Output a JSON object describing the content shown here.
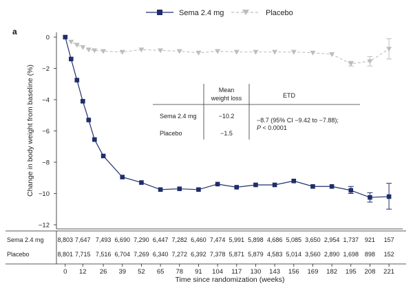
{
  "chart_data": {
    "type": "line",
    "panel_label": "a",
    "ylabel": "Change in body weight from baseline (%)",
    "xlabel": "Time since randomization (weeks)",
    "ylim": [
      -12,
      0
    ],
    "yticks": [
      0,
      -2,
      -4,
      -6,
      -8,
      -10,
      -12
    ],
    "xticks": [
      0,
      12,
      26,
      39,
      52,
      65,
      78,
      91,
      104,
      117,
      130,
      143,
      156,
      169,
      182,
      195,
      208,
      221
    ],
    "xlim": [
      -6,
      228
    ],
    "grid": false,
    "legend_position": "top-center",
    "series": [
      {
        "name": "Sema 2.4 mg",
        "color": "#1f2d6b",
        "line_style": "solid",
        "marker": "square",
        "x": [
          0,
          4,
          8,
          12,
          16,
          20,
          26,
          39,
          52,
          65,
          78,
          91,
          104,
          117,
          130,
          143,
          156,
          169,
          182,
          195,
          208,
          221
        ],
        "y": [
          0,
          -1.4,
          -2.75,
          -4.1,
          -5.3,
          -6.55,
          -7.6,
          -8.95,
          -9.3,
          -9.75,
          -9.7,
          -9.75,
          -9.4,
          -9.6,
          -9.45,
          -9.45,
          -9.2,
          -9.55,
          -9.55,
          -9.8,
          -10.25,
          -10.2
        ],
        "error_bars": [
          {
            "x": 195,
            "low": -10.0,
            "high": -9.55
          },
          {
            "x": 208,
            "low": -10.55,
            "high": -9.95
          },
          {
            "x": 221,
            "low": -11.0,
            "high": -9.35
          }
        ]
      },
      {
        "name": "Placebo",
        "color": "#bdbdbd",
        "line_style": "dashed",
        "marker": "triangle-down",
        "x": [
          0,
          4,
          8,
          12,
          16,
          20,
          26,
          39,
          52,
          65,
          78,
          91,
          104,
          117,
          130,
          143,
          156,
          169,
          182,
          195,
          208,
          221
        ],
        "y": [
          0,
          -0.3,
          -0.5,
          -0.65,
          -0.8,
          -0.85,
          -0.9,
          -0.95,
          -0.8,
          -0.85,
          -0.9,
          -1.0,
          -0.9,
          -0.95,
          -0.95,
          -0.95,
          -0.95,
          -1.0,
          -1.1,
          -1.7,
          -1.55,
          -0.75
        ],
        "error_bars": [
          {
            "x": 195,
            "low": -1.85,
            "high": -1.55
          },
          {
            "x": 208,
            "low": -1.85,
            "high": -1.25
          },
          {
            "x": 221,
            "low": -1.4,
            "high": -0.1
          }
        ]
      }
    ],
    "inset_table": {
      "header_col2_line1": "Mean",
      "header_col2_line2": "weight loss",
      "header_col3": "ETD",
      "row1_label": "Sema 2.4 mg",
      "row1_value": "−10.2",
      "row2_label": "Placebo",
      "row2_value": "−1.5",
      "etd_line1": "−8.7 (95% CI −9.42 to −7.88);",
      "etd_line2_p": "P",
      "etd_line2_rest": " < 0.0001"
    },
    "at_risk": {
      "rows": [
        {
          "label": "Sema 2.4 mg",
          "values": [
            "8,803",
            "7,647",
            "7,493",
            "6,690",
            "7,290",
            "6,447",
            "7,282",
            "6,460",
            "7,474",
            "5,991",
            "5,898",
            "4,686",
            "5,085",
            "3,650",
            "2,954",
            "1,737",
            "921",
            "157"
          ]
        },
        {
          "label": "Placebo",
          "values": [
            "8,801",
            "7,715",
            "7,516",
            "6,704",
            "7,269",
            "6,340",
            "7,272",
            "6,392",
            "7,378",
            "5,871",
            "5,879",
            "4,583",
            "5,014",
            "3,560",
            "2,890",
            "1,698",
            "898",
            "152"
          ]
        }
      ]
    }
  }
}
